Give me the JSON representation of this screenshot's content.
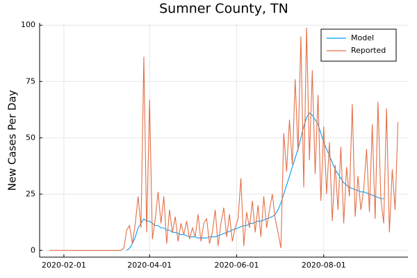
{
  "chart_data": {
    "type": "line",
    "title": "Sumner County, TN",
    "y_label": "New Cases Per Day",
    "x": [
      "2020-01-22",
      "2020-03-12",
      "2020-03-14",
      "2020-03-16",
      "2020-03-18",
      "2020-03-20",
      "2020-03-22",
      "2020-03-24",
      "2020-03-26",
      "2020-03-28",
      "2020-03-30",
      "2020-04-01",
      "2020-04-03",
      "2020-04-05",
      "2020-04-07",
      "2020-04-09",
      "2020-04-11",
      "2020-04-13",
      "2020-04-15",
      "2020-04-17",
      "2020-04-19",
      "2020-04-21",
      "2020-04-23",
      "2020-04-25",
      "2020-04-27",
      "2020-04-29",
      "2020-05-01",
      "2020-05-03",
      "2020-05-05",
      "2020-05-07",
      "2020-05-09",
      "2020-05-11",
      "2020-05-13",
      "2020-05-15",
      "2020-05-17",
      "2020-05-19",
      "2020-05-21",
      "2020-05-23",
      "2020-05-25",
      "2020-05-27",
      "2020-05-29",
      "2020-05-31",
      "2020-06-02",
      "2020-06-04",
      "2020-06-06",
      "2020-06-08",
      "2020-06-10",
      "2020-06-12",
      "2020-06-14",
      "2020-06-16",
      "2020-06-18",
      "2020-06-20",
      "2020-06-22",
      "2020-06-24",
      "2020-06-26",
      "2020-06-28",
      "2020-06-30",
      "2020-07-02",
      "2020-07-04",
      "2020-07-06",
      "2020-07-08",
      "2020-07-10",
      "2020-07-12",
      "2020-07-14",
      "2020-07-16",
      "2020-07-18",
      "2020-07-20",
      "2020-07-22",
      "2020-07-24",
      "2020-07-26",
      "2020-07-28",
      "2020-07-30",
      "2020-08-01",
      "2020-08-03",
      "2020-08-05",
      "2020-08-07",
      "2020-08-09",
      "2020-08-11",
      "2020-08-13",
      "2020-08-15",
      "2020-08-17",
      "2020-08-19",
      "2020-08-21",
      "2020-08-23",
      "2020-08-25",
      "2020-08-27",
      "2020-08-29",
      "2020-08-31",
      "2020-09-02",
      "2020-09-04",
      "2020-09-06",
      "2020-09-08",
      "2020-09-10",
      "2020-09-12",
      "2020-09-14",
      "2020-09-16",
      "2020-09-18",
      "2020-09-20",
      "2020-09-22"
    ],
    "series": [
      {
        "name": "Model",
        "color": "#009af9",
        "values": [
          null,
          null,
          null,
          0,
          1,
          3,
          6,
          10,
          12,
          14,
          13,
          13,
          12,
          11,
          11,
          10,
          10,
          9,
          9,
          8,
          8,
          7.5,
          7,
          7,
          6.5,
          6,
          6,
          6,
          5.5,
          5.5,
          5.5,
          5.5,
          6,
          6,
          6,
          6.5,
          7,
          7.5,
          8,
          8.5,
          9,
          9.5,
          10,
          10.5,
          11,
          11,
          12,
          12,
          12.5,
          13,
          13,
          13.5,
          14,
          14.5,
          15,
          16,
          18,
          21,
          25,
          29,
          33,
          37,
          41,
          45,
          50,
          55,
          59,
          61,
          60,
          58,
          56,
          52,
          48,
          45,
          42,
          39,
          36,
          34,
          32,
          30,
          29,
          28,
          27.5,
          27,
          26.5,
          26,
          26,
          25.5,
          25,
          24.5,
          24,
          23.5,
          23,
          23,
          null,
          null,
          null,
          null,
          null
        ]
      },
      {
        "name": "Reported",
        "color": "#e26f46",
        "values": [
          0,
          0,
          1,
          9,
          11,
          3,
          12,
          24,
          10,
          86,
          8,
          67,
          5,
          14,
          26,
          12,
          24,
          3,
          18,
          8,
          15,
          4,
          12,
          7,
          13,
          5,
          10,
          6,
          16,
          4,
          12,
          14,
          3,
          8,
          18,
          2,
          12,
          19,
          6,
          16,
          4,
          10,
          14,
          32,
          2,
          17,
          10,
          22,
          8,
          20,
          6,
          24,
          10,
          18,
          25,
          14,
          8,
          1,
          52,
          35,
          58,
          38,
          76,
          44,
          95,
          28,
          99,
          40,
          80,
          34,
          69,
          22,
          55,
          25,
          48,
          13,
          38,
          18,
          46,
          12,
          37,
          24,
          65,
          15,
          33,
          18,
          27,
          45,
          17,
          56,
          14,
          66,
          23,
          12,
          63,
          8,
          36,
          18,
          57
        ]
      }
    ],
    "xlim": [
      "2020-01-15",
      "2020-09-29"
    ],
    "xticks": [
      "2020-02-01",
      "2020-04-01",
      "2020-06-01",
      "2020-08-01"
    ],
    "ylim": [
      -3,
      101
    ],
    "yticks": [
      0,
      25,
      50,
      75,
      100
    ],
    "grid": true,
    "legend": "top right"
  }
}
